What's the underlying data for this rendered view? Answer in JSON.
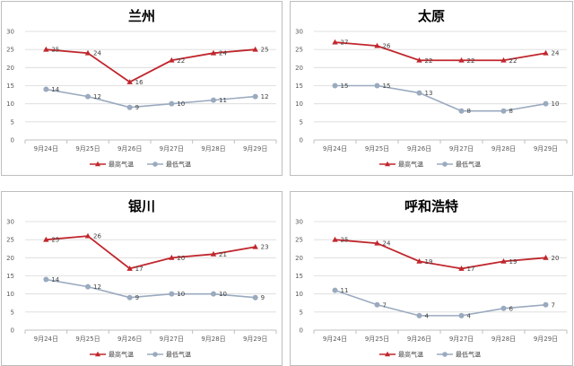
{
  "colors": {
    "high": "#c0272d",
    "low": "#9aaabf",
    "grid": "#d9d9d9",
    "axis": "#bfbfbf"
  },
  "chart_data": [
    {
      "type": "line",
      "title": "兰州",
      "categories": [
        "9月24日",
        "9月25日",
        "9月26日",
        "9月27日",
        "9月28日",
        "9月29日"
      ],
      "ylim": [
        0,
        30
      ],
      "yticks": [
        "0",
        "5",
        "10",
        "15",
        "20",
        "25",
        "30"
      ],
      "series": [
        {
          "name": "最高气温",
          "values": [
            25,
            24,
            16,
            22,
            24,
            25
          ]
        },
        {
          "name": "最低气温",
          "values": [
            14,
            12,
            9,
            10,
            11,
            12
          ]
        }
      ],
      "legend": "bottom",
      "grid": true
    },
    {
      "type": "line",
      "title": "太原",
      "categories": [
        "9月24日",
        "9月25日",
        "9月26日",
        "9月27日",
        "9月28日",
        "9月29日"
      ],
      "ylim": [
        0,
        30
      ],
      "yticks": [
        "0",
        "5",
        "10",
        "15",
        "20",
        "25",
        "30"
      ],
      "series": [
        {
          "name": "最高气温",
          "values": [
            27,
            26,
            22,
            22,
            22,
            24
          ]
        },
        {
          "name": "最低气温",
          "values": [
            15,
            15,
            13,
            8,
            8,
            10
          ]
        }
      ],
      "legend": "bottom",
      "grid": true
    },
    {
      "type": "line",
      "title": "银川",
      "categories": [
        "9月24日",
        "9月25日",
        "9月26日",
        "9月27日",
        "9月28日",
        "9月29日"
      ],
      "ylim": [
        0,
        30
      ],
      "yticks": [
        "0",
        "5",
        "10",
        "15",
        "20",
        "25",
        "30"
      ],
      "series": [
        {
          "name": "最高气温",
          "values": [
            25,
            26,
            17,
            20,
            21,
            23
          ]
        },
        {
          "name": "最低气温",
          "values": [
            14,
            12,
            9,
            10,
            10,
            9
          ]
        }
      ],
      "legend": "bottom",
      "grid": true
    },
    {
      "type": "line",
      "title": "呼和浩特",
      "categories": [
        "9月24日",
        "9月25日",
        "9月26日",
        "9月27日",
        "9月28日",
        "9月29日"
      ],
      "ylim": [
        0,
        30
      ],
      "yticks": [
        "0",
        "5",
        "10",
        "15",
        "20",
        "25",
        "30"
      ],
      "series": [
        {
          "name": "最高气温",
          "values": [
            25,
            24,
            19,
            17,
            19,
            20
          ]
        },
        {
          "name": "最低气温",
          "values": [
            11,
            7,
            4,
            4,
            6,
            7
          ]
        }
      ],
      "legend": "bottom",
      "grid": true
    }
  ]
}
